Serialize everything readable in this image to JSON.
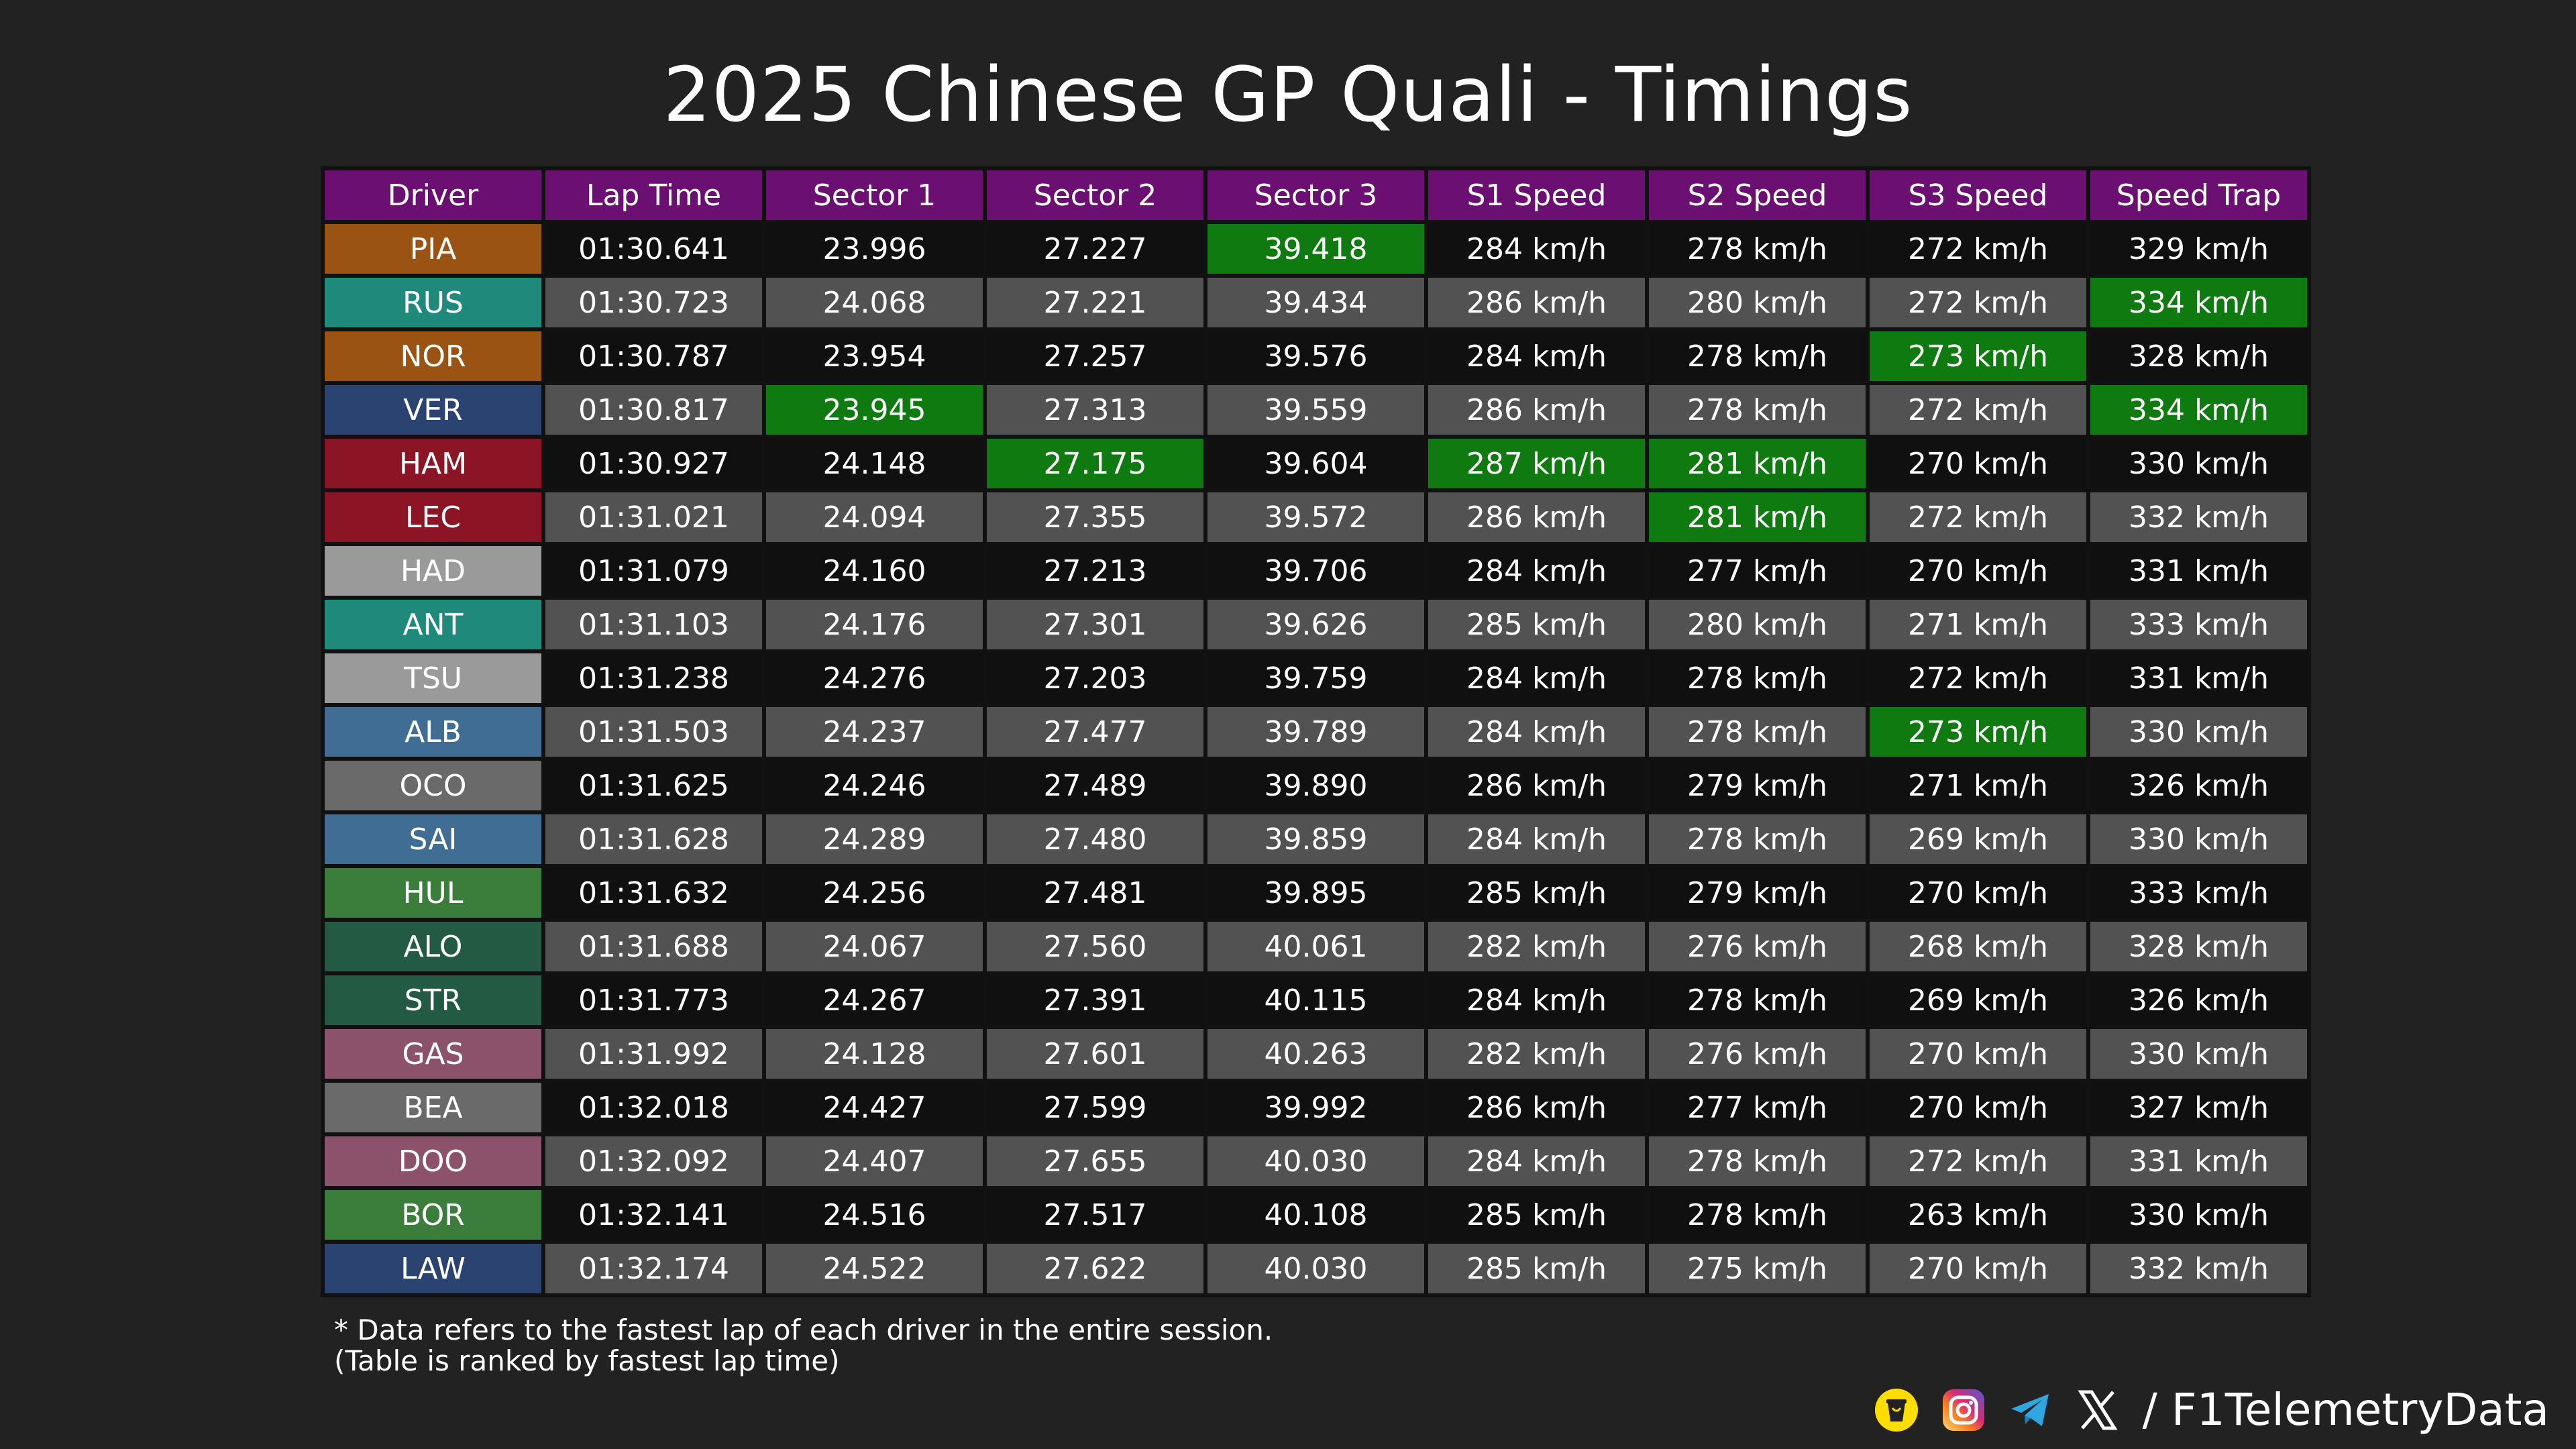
{
  "title": "2025 Chinese GP Quali - Timings",
  "watermark": "@F1TelemetryData",
  "chart_data": {
    "type": "table",
    "title": "2025 Chinese GP Quali - Timings",
    "columns": [
      "Driver",
      "Lap Time",
      "Sector 1",
      "Sector 2",
      "Sector 3",
      "S1 Speed",
      "S2 Speed",
      "S3 Speed",
      "Speed Trap"
    ],
    "rows": [
      {
        "driver": "PIA",
        "team_color": "#9a5312",
        "cells": [
          "01:30.641",
          "23.996",
          "27.227",
          "39.418",
          "284 km/h",
          "278 km/h",
          "272 km/h",
          "329 km/h"
        ],
        "best": [
          3
        ]
      },
      {
        "driver": "RUS",
        "team_color": "#1f8a7c",
        "cells": [
          "01:30.723",
          "24.068",
          "27.221",
          "39.434",
          "286 km/h",
          "280 km/h",
          "272 km/h",
          "334 km/h"
        ],
        "best": [
          7
        ]
      },
      {
        "driver": "NOR",
        "team_color": "#9a5312",
        "cells": [
          "01:30.787",
          "23.954",
          "27.257",
          "39.576",
          "284 km/h",
          "278 km/h",
          "273 km/h",
          "328 km/h"
        ],
        "best": [
          6
        ]
      },
      {
        "driver": "VER",
        "team_color": "#2b4370",
        "cells": [
          "01:30.817",
          "23.945",
          "27.313",
          "39.559",
          "286 km/h",
          "278 km/h",
          "272 km/h",
          "334 km/h"
        ],
        "best": [
          1,
          7
        ]
      },
      {
        "driver": "HAM",
        "team_color": "#8b1524",
        "cells": [
          "01:30.927",
          "24.148",
          "27.175",
          "39.604",
          "287 km/h",
          "281 km/h",
          "270 km/h",
          "330 km/h"
        ],
        "best": [
          2,
          4,
          5
        ]
      },
      {
        "driver": "LEC",
        "team_color": "#8b1524",
        "cells": [
          "01:31.021",
          "24.094",
          "27.355",
          "39.572",
          "286 km/h",
          "281 km/h",
          "272 km/h",
          "332 km/h"
        ],
        "best": [
          5
        ]
      },
      {
        "driver": "HAD",
        "team_color": "#9a9a9a",
        "cells": [
          "01:31.079",
          "24.160",
          "27.213",
          "39.706",
          "284 km/h",
          "277 km/h",
          "270 km/h",
          "331 km/h"
        ],
        "best": []
      },
      {
        "driver": "ANT",
        "team_color": "#1f8a7c",
        "cells": [
          "01:31.103",
          "24.176",
          "27.301",
          "39.626",
          "285 km/h",
          "280 km/h",
          "271 km/h",
          "333 km/h"
        ],
        "best": []
      },
      {
        "driver": "TSU",
        "team_color": "#9a9a9a",
        "cells": [
          "01:31.238",
          "24.276",
          "27.203",
          "39.759",
          "284 km/h",
          "278 km/h",
          "272 km/h",
          "331 km/h"
        ],
        "best": []
      },
      {
        "driver": "ALB",
        "team_color": "#3f6d93",
        "cells": [
          "01:31.503",
          "24.237",
          "27.477",
          "39.789",
          "284 km/h",
          "278 km/h",
          "273 km/h",
          "330 km/h"
        ],
        "best": [
          6
        ]
      },
      {
        "driver": "OCO",
        "team_color": "#6a6a6a",
        "cells": [
          "01:31.625",
          "24.246",
          "27.489",
          "39.890",
          "286 km/h",
          "279 km/h",
          "271 km/h",
          "326 km/h"
        ],
        "best": []
      },
      {
        "driver": "SAI",
        "team_color": "#3f6d93",
        "cells": [
          "01:31.628",
          "24.289",
          "27.480",
          "39.859",
          "284 km/h",
          "278 km/h",
          "269 km/h",
          "330 km/h"
        ],
        "best": []
      },
      {
        "driver": "HUL",
        "team_color": "#3b7d3b",
        "cells": [
          "01:31.632",
          "24.256",
          "27.481",
          "39.895",
          "285 km/h",
          "279 km/h",
          "270 km/h",
          "333 km/h"
        ],
        "best": []
      },
      {
        "driver": "ALO",
        "team_color": "#235a44",
        "cells": [
          "01:31.688",
          "24.067",
          "27.560",
          "40.061",
          "282 km/h",
          "276 km/h",
          "268 km/h",
          "328 km/h"
        ],
        "best": []
      },
      {
        "driver": "STR",
        "team_color": "#235a44",
        "cells": [
          "01:31.773",
          "24.267",
          "27.391",
          "40.115",
          "284 km/h",
          "278 km/h",
          "269 km/h",
          "326 km/h"
        ],
        "best": []
      },
      {
        "driver": "GAS",
        "team_color": "#8c526c",
        "cells": [
          "01:31.992",
          "24.128",
          "27.601",
          "40.263",
          "282 km/h",
          "276 km/h",
          "270 km/h",
          "330 km/h"
        ],
        "best": []
      },
      {
        "driver": "BEA",
        "team_color": "#6a6a6a",
        "cells": [
          "01:32.018",
          "24.427",
          "27.599",
          "39.992",
          "286 km/h",
          "277 km/h",
          "270 km/h",
          "327 km/h"
        ],
        "best": []
      },
      {
        "driver": "DOO",
        "team_color": "#8c526c",
        "cells": [
          "01:32.092",
          "24.407",
          "27.655",
          "40.030",
          "284 km/h",
          "278 km/h",
          "272 km/h",
          "331 km/h"
        ],
        "best": []
      },
      {
        "driver": "BOR",
        "team_color": "#3b7d3b",
        "cells": [
          "01:32.141",
          "24.516",
          "27.517",
          "40.108",
          "285 km/h",
          "278 km/h",
          "263 km/h",
          "330 km/h"
        ],
        "best": []
      },
      {
        "driver": "LAW",
        "team_color": "#2b4370",
        "cells": [
          "01:32.174",
          "24.522",
          "27.622",
          "40.030",
          "285 km/h",
          "275 km/h",
          "270 km/h",
          "332 km/h"
        ],
        "best": []
      }
    ],
    "colors": {
      "header": "#6b0f72",
      "row_dark": "#101010",
      "row_light": "#525252",
      "best": "#0f7a10"
    }
  },
  "notes": [
    "* Data refers to the fastest lap of each driver in the entire session.",
    "(Table is ranked by fastest lap time)"
  ],
  "footer": {
    "icons": [
      "buymeacoffee-icon",
      "instagram-icon",
      "telegram-icon",
      "x-icon"
    ],
    "handle": "/ F1TelemetryData"
  }
}
